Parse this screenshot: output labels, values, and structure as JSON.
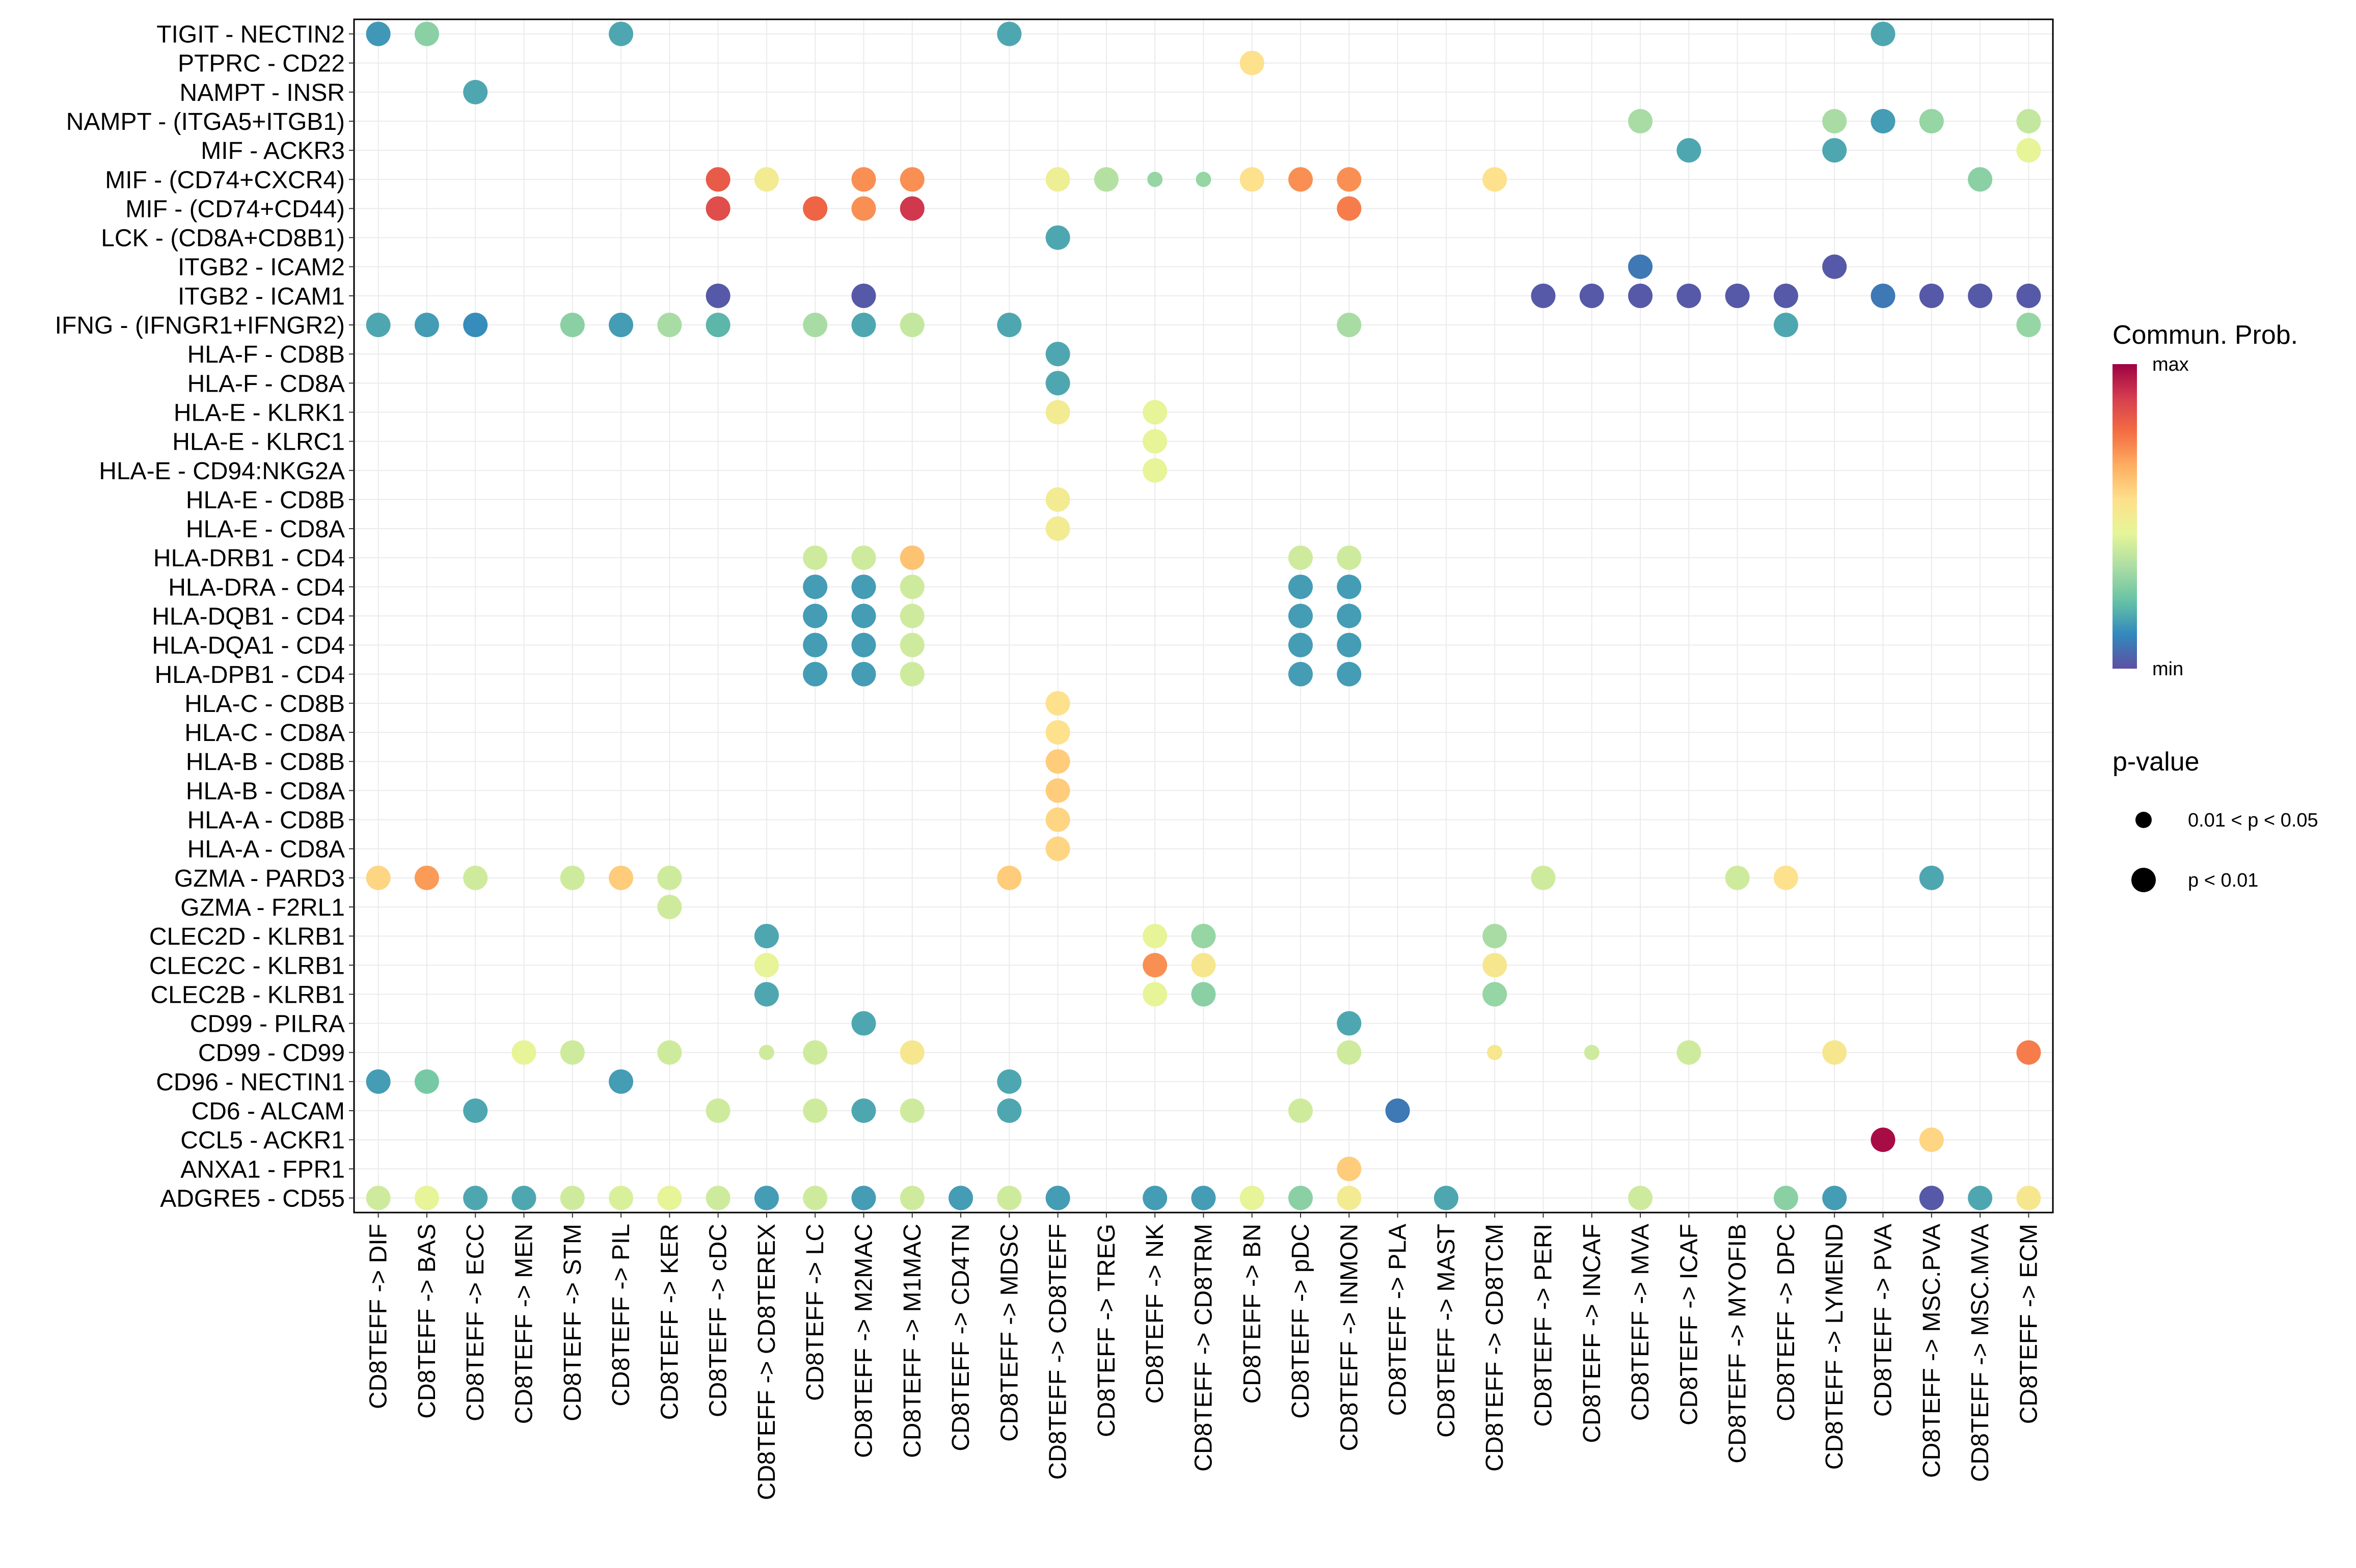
{
  "chart_data": {
    "type": "bubble-heatmap",
    "title": "",
    "xlabel": "",
    "ylabel": "",
    "grid": true,
    "rows": [
      "TIGIT - NECTIN2",
      "PTPRC - CD22",
      "NAMPT - INSR",
      "NAMPT - (ITGA5+ITGB1)",
      "MIF - ACKR3",
      "MIF - (CD74+CXCR4)",
      "MIF - (CD74+CD44)",
      "LCK - (CD8A+CD8B1)",
      "ITGB2 - ICAM2",
      "ITGB2 - ICAM1",
      "IFNG - (IFNGR1+IFNGR2)",
      "HLA-F - CD8B",
      "HLA-F - CD8A",
      "HLA-E - KLRK1",
      "HLA-E - KLRC1",
      "HLA-E - CD94:NKG2A",
      "HLA-E - CD8B",
      "HLA-E - CD8A",
      "HLA-DRB1 - CD4",
      "HLA-DRA - CD4",
      "HLA-DQB1 - CD4",
      "HLA-DQA1 - CD4",
      "HLA-DPB1 - CD4",
      "HLA-C - CD8B",
      "HLA-C - CD8A",
      "HLA-B - CD8B",
      "HLA-B - CD8A",
      "HLA-A - CD8B",
      "HLA-A - CD8A",
      "GZMA - PARD3",
      "GZMA - F2RL1",
      "CLEC2D - KLRB1",
      "CLEC2C - KLRB1",
      "CLEC2B - KLRB1",
      "CD99 - PILRA",
      "CD99 - CD99",
      "CD96 - NECTIN1",
      "CD6 - ALCAM",
      "CCL5 - ACKR1",
      "ANXA1 - FPR1",
      "ADGRE5 - CD55"
    ],
    "columns": [
      "CD8TEFF -> DIF",
      "CD8TEFF -> BAS",
      "CD8TEFF -> ECC",
      "CD8TEFF -> MEN",
      "CD8TEFF -> STM",
      "CD8TEFF -> PIL",
      "CD8TEFF -> KER",
      "CD8TEFF -> cDC",
      "CD8TEFF -> CD8TEREX",
      "CD8TEFF -> LC",
      "CD8TEFF -> M2MAC",
      "CD8TEFF -> M1MAC",
      "CD8TEFF -> CD4TN",
      "CD8TEFF -> MDSC",
      "CD8TEFF -> CD8TEFF",
      "CD8TEFF -> TREG",
      "CD8TEFF -> NK",
      "CD8TEFF -> CD8TRM",
      "CD8TEFF -> BN",
      "CD8TEFF -> pDC",
      "CD8TEFF -> INMON",
      "CD8TEFF -> PLA",
      "CD8TEFF -> MAST",
      "CD8TEFF -> CD8TCM",
      "CD8TEFF -> PERI",
      "CD8TEFF -> INCAF",
      "CD8TEFF -> MVA",
      "CD8TEFF -> ICAF",
      "CD8TEFF -> MYOFIB",
      "CD8TEFF -> DPC",
      "CD8TEFF -> LYMEND",
      "CD8TEFF -> PVA",
      "CD8TEFF -> MSC.PVA",
      "CD8TEFF -> MSC.MVA",
      "CD8TEFF -> ECM"
    ],
    "points_note": "each point: [row_index, column_index, commun_prob_scaled_0_to_1, pvalue_class] ; pvalue_class 1 = 'p < 0.01' (large dot), 0 = '0.01 < p < 0.05' (small dot)",
    "points": [
      [
        0,
        0,
        0.14,
        1
      ],
      [
        0,
        1,
        0.28,
        1
      ],
      [
        0,
        5,
        0.17,
        1
      ],
      [
        0,
        13,
        0.17,
        1
      ],
      [
        0,
        31,
        0.17,
        1
      ],
      [
        1,
        18,
        0.55,
        1
      ],
      [
        2,
        2,
        0.17,
        1
      ],
      [
        3,
        26,
        0.33,
        1
      ],
      [
        3,
        30,
        0.33,
        1
      ],
      [
        3,
        31,
        0.15,
        1
      ],
      [
        3,
        32,
        0.3,
        1
      ],
      [
        3,
        34,
        0.38,
        1
      ],
      [
        4,
        27,
        0.17,
        1
      ],
      [
        4,
        30,
        0.17,
        1
      ],
      [
        4,
        34,
        0.45,
        1
      ],
      [
        5,
        7,
        0.82,
        1
      ],
      [
        5,
        8,
        0.5,
        1
      ],
      [
        5,
        10,
        0.72,
        1
      ],
      [
        5,
        11,
        0.72,
        1
      ],
      [
        5,
        14,
        0.48,
        1
      ],
      [
        5,
        15,
        0.35,
        1
      ],
      [
        5,
        16,
        0.3,
        0
      ],
      [
        5,
        17,
        0.3,
        0
      ],
      [
        5,
        18,
        0.55,
        1
      ],
      [
        5,
        19,
        0.72,
        1
      ],
      [
        5,
        20,
        0.72,
        1
      ],
      [
        5,
        23,
        0.55,
        1
      ],
      [
        5,
        33,
        0.28,
        1
      ],
      [
        6,
        7,
        0.85,
        1
      ],
      [
        6,
        9,
        0.8,
        1
      ],
      [
        6,
        10,
        0.72,
        1
      ],
      [
        6,
        11,
        0.9,
        1
      ],
      [
        6,
        20,
        0.75,
        1
      ],
      [
        7,
        14,
        0.17,
        1
      ],
      [
        8,
        26,
        0.08,
        1
      ],
      [
        8,
        30,
        0.02,
        1
      ],
      [
        9,
        7,
        0.02,
        1
      ],
      [
        9,
        10,
        0.02,
        1
      ],
      [
        9,
        24,
        0.02,
        1
      ],
      [
        9,
        25,
        0.02,
        1
      ],
      [
        9,
        26,
        0.02,
        1
      ],
      [
        9,
        27,
        0.02,
        1
      ],
      [
        9,
        28,
        0.02,
        1
      ],
      [
        9,
        29,
        0.02,
        1
      ],
      [
        9,
        31,
        0.08,
        1
      ],
      [
        9,
        32,
        0.02,
        1
      ],
      [
        9,
        33,
        0.02,
        1
      ],
      [
        9,
        34,
        0.02,
        1
      ],
      [
        10,
        0,
        0.17,
        1
      ],
      [
        10,
        1,
        0.15,
        1
      ],
      [
        10,
        2,
        0.12,
        1
      ],
      [
        10,
        4,
        0.28,
        1
      ],
      [
        10,
        5,
        0.15,
        1
      ],
      [
        10,
        6,
        0.33,
        1
      ],
      [
        10,
        7,
        0.2,
        1
      ],
      [
        10,
        9,
        0.33,
        1
      ],
      [
        10,
        10,
        0.17,
        1
      ],
      [
        10,
        11,
        0.38,
        1
      ],
      [
        10,
        13,
        0.17,
        1
      ],
      [
        10,
        20,
        0.33,
        1
      ],
      [
        10,
        29,
        0.17,
        1
      ],
      [
        10,
        34,
        0.3,
        1
      ],
      [
        11,
        14,
        0.17,
        1
      ],
      [
        12,
        14,
        0.17,
        1
      ],
      [
        13,
        14,
        0.5,
        1
      ],
      [
        13,
        16,
        0.45,
        1
      ],
      [
        14,
        16,
        0.45,
        1
      ],
      [
        15,
        16,
        0.45,
        1
      ],
      [
        16,
        14,
        0.5,
        1
      ],
      [
        17,
        14,
        0.5,
        1
      ],
      [
        18,
        9,
        0.4,
        1
      ],
      [
        18,
        10,
        0.4,
        1
      ],
      [
        18,
        11,
        0.62,
        1
      ],
      [
        18,
        19,
        0.4,
        1
      ],
      [
        18,
        20,
        0.4,
        1
      ],
      [
        19,
        9,
        0.15,
        1
      ],
      [
        19,
        10,
        0.15,
        1
      ],
      [
        19,
        11,
        0.4,
        1
      ],
      [
        19,
        19,
        0.15,
        1
      ],
      [
        19,
        20,
        0.15,
        1
      ],
      [
        20,
        9,
        0.15,
        1
      ],
      [
        20,
        10,
        0.15,
        1
      ],
      [
        20,
        11,
        0.4,
        1
      ],
      [
        20,
        19,
        0.15,
        1
      ],
      [
        20,
        20,
        0.15,
        1
      ],
      [
        21,
        9,
        0.15,
        1
      ],
      [
        21,
        10,
        0.15,
        1
      ],
      [
        21,
        11,
        0.4,
        1
      ],
      [
        21,
        19,
        0.15,
        1
      ],
      [
        21,
        20,
        0.15,
        1
      ],
      [
        22,
        9,
        0.15,
        1
      ],
      [
        22,
        10,
        0.15,
        1
      ],
      [
        22,
        11,
        0.4,
        1
      ],
      [
        22,
        19,
        0.15,
        1
      ],
      [
        22,
        20,
        0.15,
        1
      ],
      [
        23,
        14,
        0.55,
        1
      ],
      [
        24,
        14,
        0.55,
        1
      ],
      [
        25,
        14,
        0.6,
        1
      ],
      [
        26,
        14,
        0.6,
        1
      ],
      [
        27,
        14,
        0.58,
        1
      ],
      [
        28,
        14,
        0.58,
        1
      ],
      [
        29,
        0,
        0.58,
        1
      ],
      [
        29,
        1,
        0.7,
        1
      ],
      [
        29,
        2,
        0.4,
        1
      ],
      [
        29,
        4,
        0.4,
        1
      ],
      [
        29,
        5,
        0.6,
        1
      ],
      [
        29,
        6,
        0.4,
        1
      ],
      [
        29,
        13,
        0.6,
        1
      ],
      [
        29,
        24,
        0.4,
        1
      ],
      [
        29,
        28,
        0.4,
        1
      ],
      [
        29,
        29,
        0.55,
        1
      ],
      [
        29,
        32,
        0.17,
        1
      ],
      [
        30,
        6,
        0.4,
        1
      ],
      [
        31,
        8,
        0.17,
        1
      ],
      [
        31,
        16,
        0.45,
        1
      ],
      [
        31,
        17,
        0.3,
        1
      ],
      [
        31,
        23,
        0.33,
        1
      ],
      [
        32,
        8,
        0.45,
        1
      ],
      [
        32,
        16,
        0.72,
        1
      ],
      [
        32,
        17,
        0.52,
        1
      ],
      [
        32,
        23,
        0.52,
        1
      ],
      [
        33,
        8,
        0.17,
        1
      ],
      [
        33,
        16,
        0.45,
        1
      ],
      [
        33,
        17,
        0.28,
        1
      ],
      [
        33,
        23,
        0.3,
        1
      ],
      [
        34,
        10,
        0.17,
        1
      ],
      [
        34,
        20,
        0.17,
        1
      ],
      [
        35,
        3,
        0.45,
        1
      ],
      [
        35,
        4,
        0.4,
        1
      ],
      [
        35,
        6,
        0.4,
        1
      ],
      [
        35,
        8,
        0.4,
        0
      ],
      [
        35,
        9,
        0.4,
        1
      ],
      [
        35,
        11,
        0.52,
        1
      ],
      [
        35,
        20,
        0.4,
        1
      ],
      [
        35,
        23,
        0.52,
        0
      ],
      [
        35,
        25,
        0.4,
        0
      ],
      [
        35,
        27,
        0.4,
        1
      ],
      [
        35,
        30,
        0.52,
        1
      ],
      [
        35,
        34,
        0.75,
        1
      ],
      [
        36,
        0,
        0.15,
        1
      ],
      [
        36,
        1,
        0.25,
        1
      ],
      [
        36,
        5,
        0.15,
        1
      ],
      [
        36,
        13,
        0.17,
        1
      ],
      [
        37,
        2,
        0.17,
        1
      ],
      [
        37,
        7,
        0.4,
        1
      ],
      [
        37,
        9,
        0.4,
        1
      ],
      [
        37,
        10,
        0.17,
        1
      ],
      [
        37,
        11,
        0.4,
        1
      ],
      [
        37,
        13,
        0.17,
        1
      ],
      [
        37,
        19,
        0.4,
        1
      ],
      [
        37,
        21,
        0.08,
        1
      ],
      [
        38,
        31,
        0.98,
        1
      ],
      [
        38,
        32,
        0.58,
        1
      ],
      [
        39,
        20,
        0.6,
        1
      ],
      [
        40,
        0,
        0.4,
        1
      ],
      [
        40,
        1,
        0.45,
        1
      ],
      [
        40,
        2,
        0.17,
        1
      ],
      [
        40,
        3,
        0.17,
        1
      ],
      [
        40,
        4,
        0.4,
        1
      ],
      [
        40,
        5,
        0.42,
        1
      ],
      [
        40,
        6,
        0.45,
        1
      ],
      [
        40,
        7,
        0.4,
        1
      ],
      [
        40,
        8,
        0.15,
        1
      ],
      [
        40,
        9,
        0.4,
        1
      ],
      [
        40,
        10,
        0.15,
        1
      ],
      [
        40,
        11,
        0.4,
        1
      ],
      [
        40,
        12,
        0.15,
        1
      ],
      [
        40,
        13,
        0.4,
        1
      ],
      [
        40,
        14,
        0.15,
        1
      ],
      [
        40,
        16,
        0.15,
        1
      ],
      [
        40,
        17,
        0.15,
        1
      ],
      [
        40,
        18,
        0.45,
        1
      ],
      [
        40,
        19,
        0.28,
        1
      ],
      [
        40,
        20,
        0.5,
        1
      ],
      [
        40,
        22,
        0.17,
        1
      ],
      [
        40,
        26,
        0.4,
        1
      ],
      [
        40,
        29,
        0.28,
        1
      ],
      [
        40,
        30,
        0.15,
        1
      ],
      [
        40,
        32,
        0.02,
        1
      ],
      [
        40,
        33,
        0.17,
        1
      ],
      [
        40,
        34,
        0.52,
        1
      ]
    ],
    "legend": {
      "color_title": "Commun. Prob.",
      "color_max_label": "max",
      "color_min_label": "min",
      "palette": [
        "#5E4FA2",
        "#3288BD",
        "#66C2A5",
        "#ABDDA4",
        "#E6F598",
        "#FEE08B",
        "#FDAE61",
        "#F46D43",
        "#D53E4F",
        "#9E0142"
      ],
      "size_title": "p-value",
      "size_labels": [
        "0.01 < p < 0.05",
        "p < 0.01"
      ],
      "placement": "right"
    }
  }
}
